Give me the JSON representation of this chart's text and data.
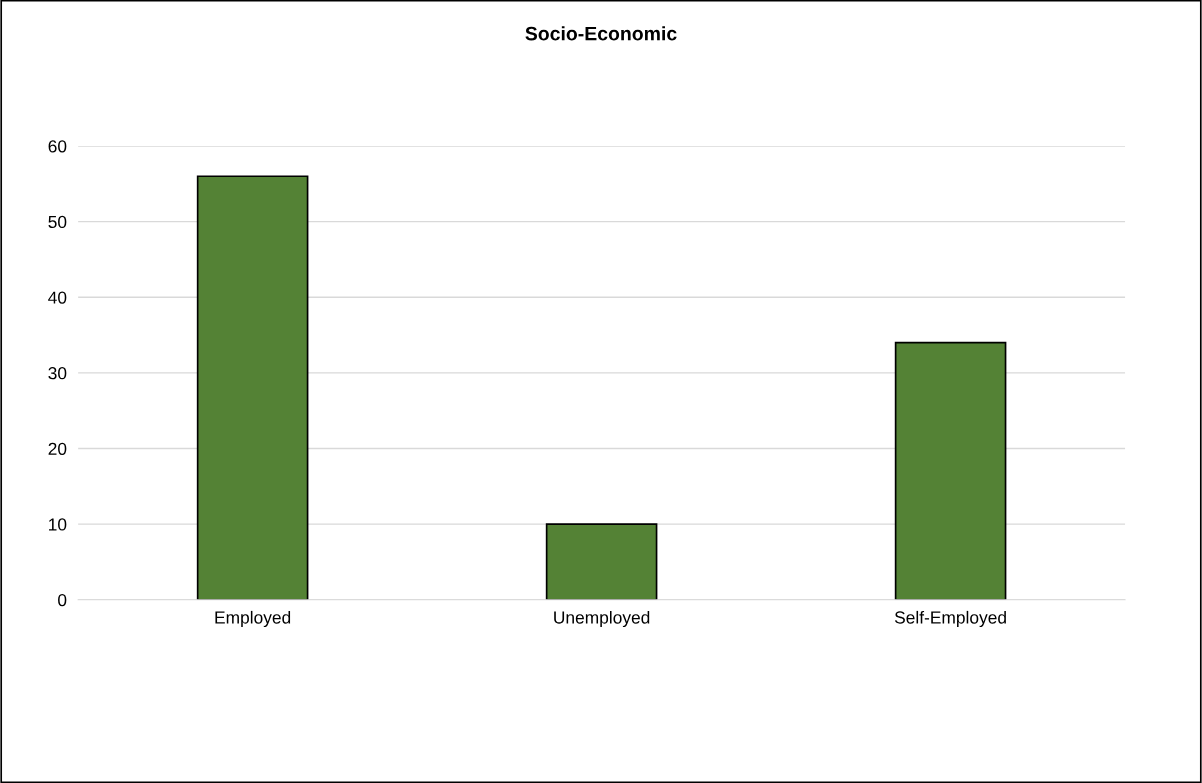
{
  "chart_data": {
    "type": "bar",
    "title": "Socio-Economic",
    "categories": [
      "Employed",
      "Unemployed",
      "Self-Employed"
    ],
    "values": [
      56,
      10,
      34
    ],
    "color": "#548235",
    "ylim": [
      0,
      60
    ],
    "yticks": [
      0,
      10,
      20,
      30,
      40,
      50,
      60
    ],
    "grid": "y",
    "legend": false
  }
}
